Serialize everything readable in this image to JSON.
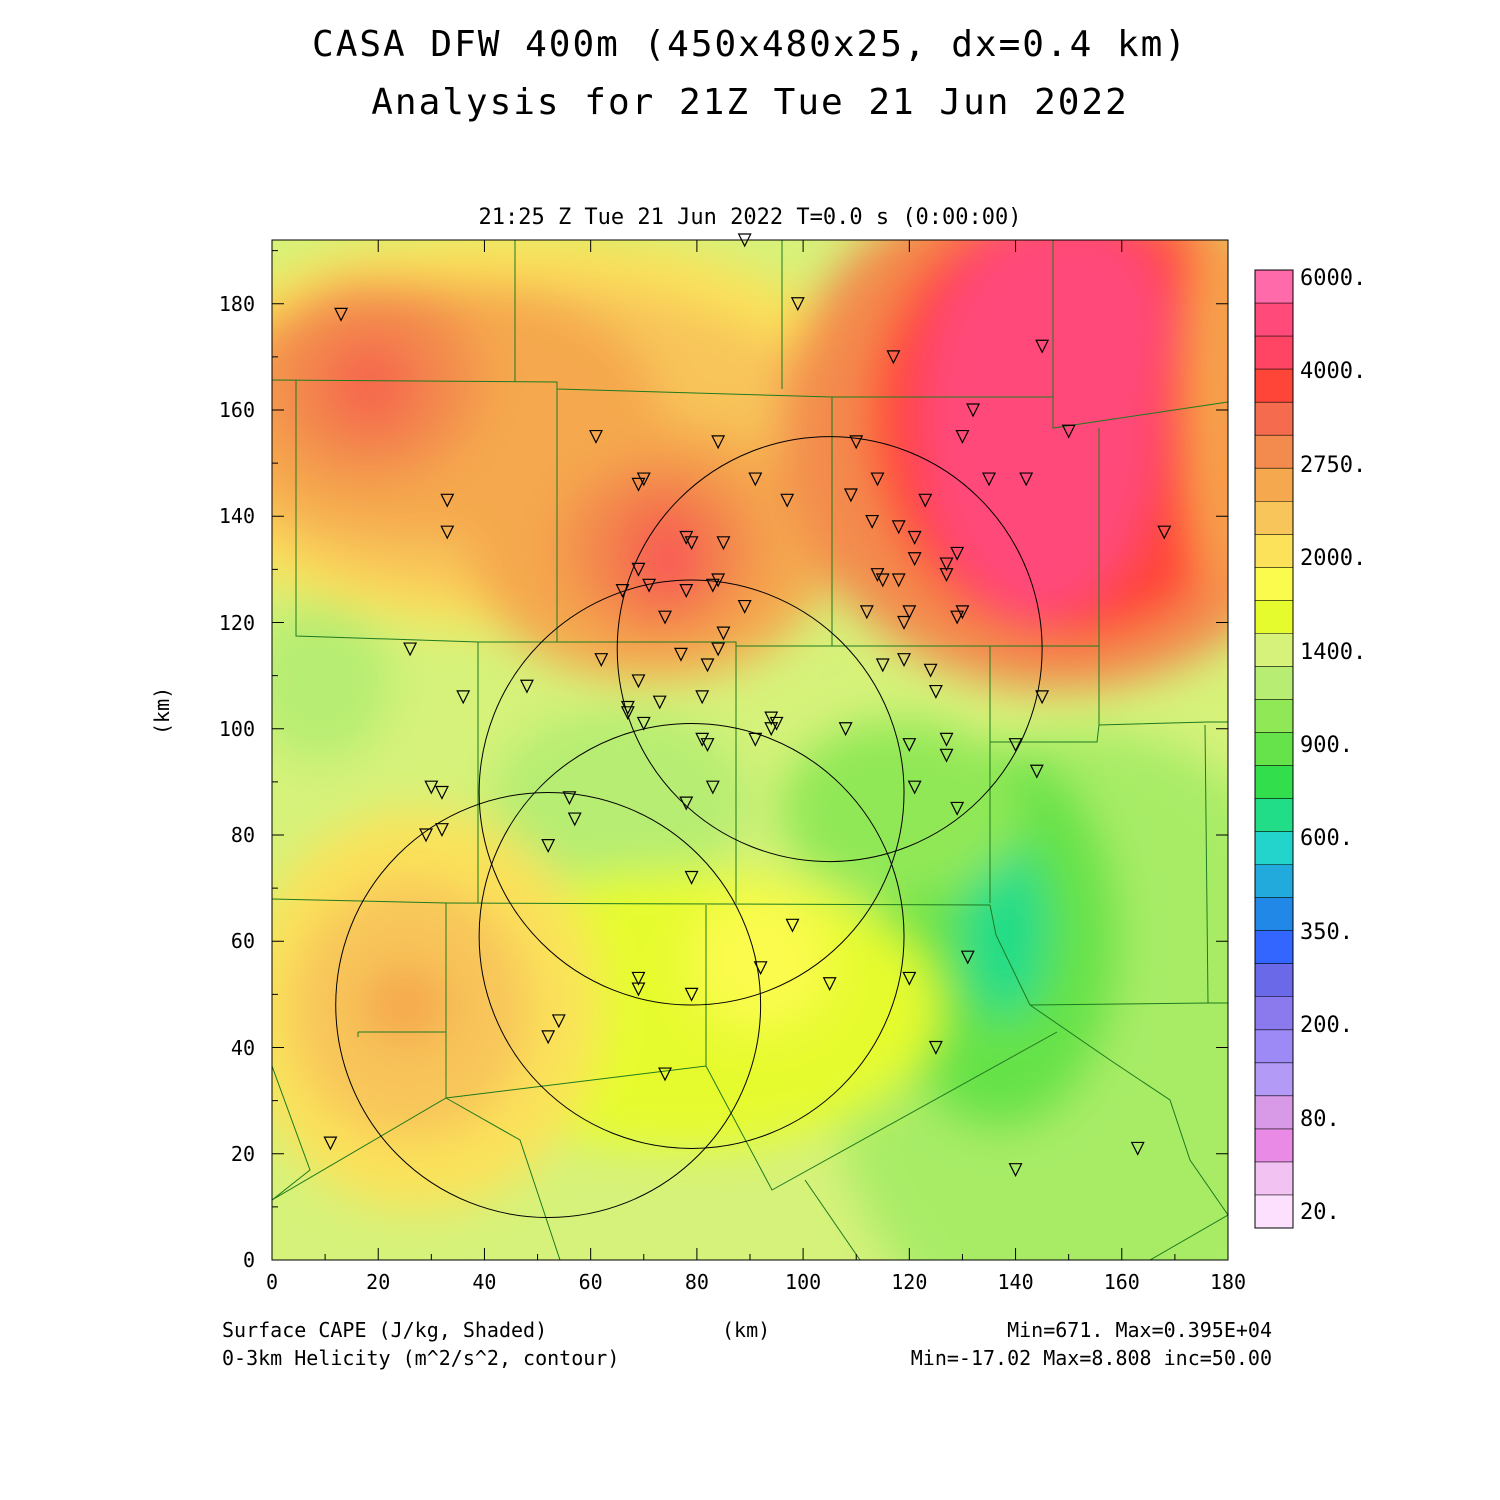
{
  "title_line1": "CASA DFW 400m (450x480x25, dx=0.4 km)",
  "title_line2": "Analysis for 21Z Tue 21 Jun 2022",
  "subtitle": "21:25 Z Tue 21 Jun 2022   T=0.0 s (0:00:00)",
  "axes": {
    "x_unit": "(km)",
    "y_unit": "(km)",
    "x_ticks": [
      "0",
      "20",
      "40",
      "60",
      "80",
      "100",
      "120",
      "140",
      "160",
      "180"
    ],
    "y_ticks": [
      "0",
      "20",
      "40",
      "60",
      "80",
      "100",
      "120",
      "140",
      "160",
      "180"
    ],
    "x_range_km": [
      0,
      180
    ],
    "y_range_km": [
      0,
      192
    ]
  },
  "footer": {
    "left_line1": "Surface CAPE (J/kg, Shaded)",
    "left_line2": "0-3km Helicity (m^2/s^2, contour)",
    "right_line1": "Min=671. Max=0.395E+04",
    "right_line2": "Min=-17.02 Max=8.808 inc=50.00"
  },
  "colorbar": {
    "labels": [
      "6000.",
      "4000.",
      "2750.",
      "2000.",
      "1400.",
      "900.",
      "600.",
      "350.",
      "200.",
      "80.",
      "20."
    ],
    "colors_top_to_bottom": [
      "#ff6aaa",
      "#ff4a7a",
      "#ff4464",
      "#ff4438",
      "#f56b4e",
      "#f38b4e",
      "#f5a84e",
      "#f8c55a",
      "#fbe25a",
      "#fbfb4e",
      "#e6fb2e",
      "#d6f27a",
      "#b6ed72",
      "#91e856",
      "#66e24a",
      "#33de4c",
      "#22dd88",
      "#22d4cc",
      "#22aadd",
      "#2288e8",
      "#3366ff",
      "#6a6ae8",
      "#8a7aee",
      "#9e8af6",
      "#b29af6",
      "#d89ae6",
      "#e88ae6",
      "#f2c2f2",
      "#fde0fd"
    ]
  },
  "map": {
    "radar_circles": [
      {
        "cx_km": 52,
        "cy_km": 48,
        "r_km": 40
      },
      {
        "cx_km": 79,
        "cy_km": 61,
        "r_km": 40
      },
      {
        "cx_km": 79,
        "cy_km": 88,
        "r_km": 40
      },
      {
        "cx_km": 105,
        "cy_km": 115,
        "r_km": 40
      }
    ],
    "stations_km": [
      [
        13,
        178
      ],
      [
        89,
        192
      ],
      [
        99,
        180
      ],
      [
        117,
        170
      ],
      [
        145,
        172
      ],
      [
        61,
        155
      ],
      [
        84,
        154
      ],
      [
        132,
        160
      ],
      [
        130,
        155
      ],
      [
        150,
        156
      ],
      [
        33,
        143
      ],
      [
        33,
        137
      ],
      [
        69,
        146
      ],
      [
        70,
        147
      ],
      [
        91,
        147
      ],
      [
        97,
        143
      ],
      [
        110,
        154
      ],
      [
        109,
        144
      ],
      [
        114,
        147
      ],
      [
        123,
        143
      ],
      [
        135,
        147
      ],
      [
        142,
        147
      ],
      [
        168,
        137
      ],
      [
        113,
        139
      ],
      [
        118,
        138
      ],
      [
        121,
        136
      ],
      [
        121,
        132
      ],
      [
        127,
        131
      ],
      [
        127,
        129
      ],
      [
        129,
        133
      ],
      [
        78,
        136
      ],
      [
        79,
        135
      ],
      [
        85,
        135
      ],
      [
        69,
        130
      ],
      [
        71,
        127
      ],
      [
        66,
        126
      ],
      [
        78,
        126
      ],
      [
        83,
        127
      ],
      [
        84,
        128
      ],
      [
        74,
        121
      ],
      [
        89,
        123
      ],
      [
        112,
        122
      ],
      [
        114,
        129
      ],
      [
        115,
        128
      ],
      [
        118,
        128
      ],
      [
        119,
        120
      ],
      [
        120,
        122
      ],
      [
        129,
        121
      ],
      [
        130,
        122
      ],
      [
        85,
        118
      ],
      [
        84,
        115
      ],
      [
        26,
        115
      ],
      [
        62,
        113
      ],
      [
        77,
        114
      ],
      [
        82,
        112
      ],
      [
        115,
        112
      ],
      [
        119,
        113
      ],
      [
        124,
        111
      ],
      [
        125,
        107
      ],
      [
        145,
        106
      ],
      [
        36,
        106
      ],
      [
        48,
        108
      ],
      [
        67,
        104
      ],
      [
        67,
        103
      ],
      [
        69,
        109
      ],
      [
        70,
        101
      ],
      [
        73,
        105
      ],
      [
        81,
        106
      ],
      [
        94,
        102
      ],
      [
        94,
        100
      ],
      [
        95,
        101
      ],
      [
        91,
        98
      ],
      [
        108,
        100
      ],
      [
        81,
        98
      ],
      [
        82,
        97
      ],
      [
        120,
        97
      ],
      [
        127,
        98
      ],
      [
        127,
        95
      ],
      [
        140,
        97
      ],
      [
        144,
        92
      ],
      [
        30,
        89
      ],
      [
        32,
        88
      ],
      [
        56,
        87
      ],
      [
        57,
        83
      ],
      [
        78,
        86
      ],
      [
        83,
        89
      ],
      [
        121,
        89
      ],
      [
        129,
        85
      ],
      [
        29,
        80
      ],
      [
        32,
        81
      ],
      [
        52,
        78
      ],
      [
        79,
        72
      ],
      [
        98,
        63
      ],
      [
        69,
        53
      ],
      [
        69,
        51
      ],
      [
        79,
        50
      ],
      [
        92,
        55
      ],
      [
        105,
        52
      ],
      [
        120,
        53
      ],
      [
        131,
        57
      ],
      [
        52,
        42
      ],
      [
        54,
        45
      ],
      [
        74,
        35
      ],
      [
        125,
        40
      ],
      [
        11,
        22
      ],
      [
        140,
        17
      ],
      [
        163,
        21
      ]
    ]
  }
}
